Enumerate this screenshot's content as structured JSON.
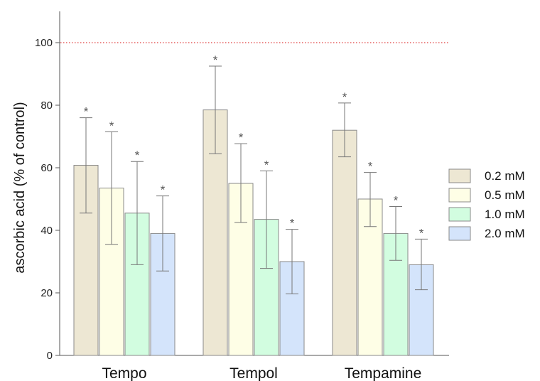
{
  "chart_data": {
    "type": "bar",
    "title": "",
    "xlabel": "",
    "ylabel": "ascorbic acid (% of control)",
    "ylim": [
      0,
      110
    ],
    "yticks": [
      0,
      20,
      40,
      60,
      80,
      100
    ],
    "categories": [
      "Tempo",
      "Tempol",
      "Tempamine"
    ],
    "series": [
      {
        "name": "0.2 mM",
        "color": "#ede7d3",
        "values": [
          60.8,
          78.5,
          72.0
        ],
        "err_low": [
          45.5,
          64.5,
          63.5
        ],
        "err_high": [
          76.0,
          92.5,
          80.7
        ],
        "marker": [
          "*",
          "*",
          "*"
        ]
      },
      {
        "name": "0.5 mM",
        "color": "#fefee6",
        "values": [
          53.5,
          55.0,
          50.0
        ],
        "err_low": [
          35.5,
          42.5,
          41.2
        ],
        "err_high": [
          71.5,
          67.7,
          58.5
        ],
        "marker": [
          "*",
          "*",
          "*"
        ]
      },
      {
        "name": "1.0 mM",
        "color": "#d2fde0",
        "values": [
          45.5,
          43.5,
          39.0
        ],
        "err_low": [
          29.0,
          27.8,
          30.4
        ],
        "err_high": [
          62.0,
          59.0,
          47.6
        ],
        "marker": [
          "*",
          "*",
          "*"
        ]
      },
      {
        "name": "2.0 mM",
        "color": "#d4e4fb",
        "values": [
          39.0,
          30.0,
          29.0
        ],
        "err_low": [
          27.0,
          19.7,
          21.0
        ],
        "err_high": [
          51.0,
          40.3,
          37.2
        ],
        "marker": [
          "*",
          "*",
          "*"
        ]
      }
    ],
    "reference_line": {
      "y": 100,
      "color": "#e04040",
      "style": "dotted"
    },
    "legend_position": "right",
    "grid": false
  }
}
